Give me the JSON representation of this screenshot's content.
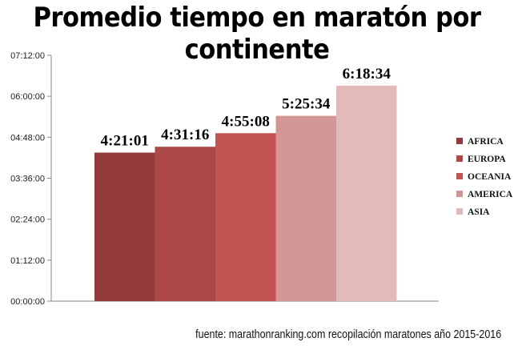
{
  "chart_data": {
    "type": "bar",
    "title": "Promedio tiempo en maratón por continente",
    "source": "fuente: marathonranking.com recopilación maratones año 2015-2016",
    "y_ticks": [
      "00:00:00",
      "01:12:00",
      "02:24:00",
      "03:36:00",
      "04:48:00",
      "06:00:00",
      "07:12:00"
    ],
    "ylim": [
      "00:00:00",
      "07:12:00"
    ],
    "legend_position": "right",
    "grid": false,
    "series": [
      {
        "name": "AFRICA",
        "value": "4:21:01",
        "color": "#943c3c"
      },
      {
        "name": "EUROPA",
        "value": "4:31:16",
        "color": "#ad4848"
      },
      {
        "name": "OCEANIA",
        "value": "4:55:08",
        "color": "#c45454"
      },
      {
        "name": "AMERICA",
        "value": "5:25:34",
        "color": "#d49595"
      },
      {
        "name": "ASIA",
        "value": "6:18:34",
        "color": "#e3baba"
      }
    ]
  }
}
